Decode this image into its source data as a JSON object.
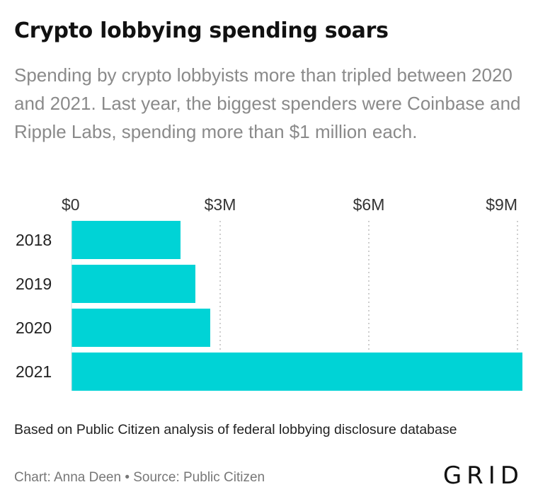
{
  "header": {
    "title": "Crypto lobbying spending soars",
    "subtitle": "Spending by crypto lobbyists more than tripled between 2020 and 2021. Last year, the biggest spenders were Coinbase and Ripple Labs, spending more than $1 million each."
  },
  "chart_data": {
    "type": "bar",
    "orientation": "horizontal",
    "categories": [
      "2018",
      "2019",
      "2020",
      "2021"
    ],
    "values": [
      2.2,
      2.5,
      2.8,
      9.1
    ],
    "unit": "$M",
    "xlim": [
      0,
      9.1
    ],
    "ticks": [
      {
        "value": 0,
        "label": "$0"
      },
      {
        "value": 3,
        "label": "$3M"
      },
      {
        "value": 6,
        "label": "$6M"
      },
      {
        "value": 9,
        "label": "$9M"
      }
    ],
    "bar_color": "#00d3d6",
    "gridlines": "dotted vertical",
    "xlabel": "",
    "ylabel": ""
  },
  "footer": {
    "note": "Based on Public Citizen analysis of federal lobbying disclosure database",
    "credit": "Chart: Anna Deen • Source: Public Citizen",
    "logo": "GRID"
  }
}
